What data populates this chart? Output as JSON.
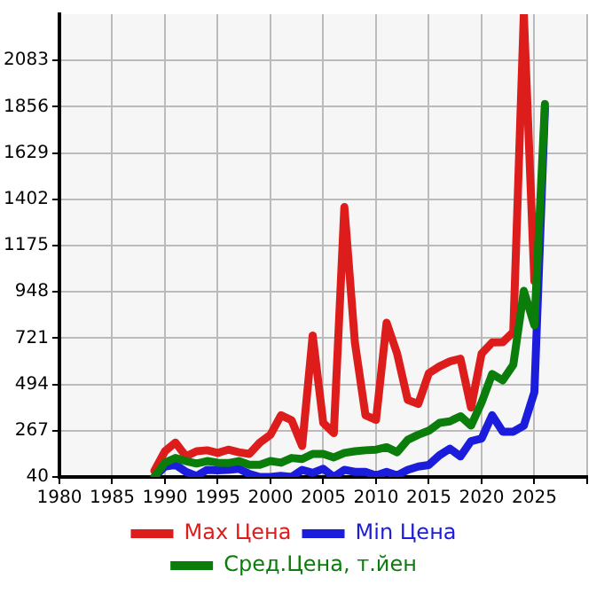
{
  "chart_data": {
    "type": "line",
    "x": [
      1989,
      1990,
      1991,
      1992,
      1993,
      1994,
      1995,
      1996,
      1997,
      1998,
      1999,
      2000,
      2001,
      2002,
      2003,
      2004,
      2005,
      2006,
      2007,
      2008,
      2009,
      2010,
      2011,
      2012,
      2013,
      2014,
      2015,
      2016,
      2017,
      2018,
      2019,
      2020,
      2021,
      2022,
      2023,
      2024,
      2025,
      2026
    ],
    "series": [
      {
        "name": "Max Цена",
        "color": "#dd1c1c",
        "values": [
          70,
          166,
          209,
          141,
          166,
          171,
          158,
          174,
          161,
          153,
          209,
          247,
          343,
          318,
          192,
          734,
          305,
          255,
          1364,
          698,
          343,
          320,
          797,
          645,
          418,
          398,
          549,
          582,
          607,
          620,
          380,
          645,
          700,
          701,
          751,
          2310,
          1000,
          null
        ]
      },
      {
        "name": "Min Цена",
        "color": "#1c1cdd",
        "values": [
          40,
          91,
          100,
          65,
          45,
          75,
          73,
          75,
          80,
          55,
          40,
          40,
          45,
          40,
          75,
          60,
          80,
          40,
          75,
          65,
          65,
          48,
          65,
          48,
          75,
          91,
          99,
          146,
          179,
          141,
          216,
          229,
          343,
          262,
          262,
          292,
          456,
          1850
        ]
      },
      {
        "name": "Сред.Цена, т.йен",
        "color": "#0a7d0a",
        "values": [
          40,
          110,
          133,
          118,
          106,
          118,
          110,
          108,
          118,
          100,
          100,
          118,
          110,
          133,
          128,
          153,
          153,
          136,
          158,
          166,
          171,
          174,
          186,
          161,
          222,
          247,
          267,
          305,
          313,
          338,
          292,
          406,
          545,
          514,
          590,
          953,
          784,
          1870
        ]
      }
    ],
    "xlim": [
      1980,
      2030
    ],
    "xticks": [
      1980,
      1985,
      1990,
      1995,
      2000,
      2005,
      2010,
      2015,
      2020,
      2025,
      {
        "value": 2030,
        "label": null
      }
    ],
    "ylim": [
      40,
      2310
    ],
    "yticks": [
      40,
      267,
      494,
      721,
      948,
      1175,
      1402,
      1629,
      1856,
      2083
    ],
    "grid": true,
    "legend": "bottom",
    "marker": "none",
    "line_style": "solid"
  }
}
